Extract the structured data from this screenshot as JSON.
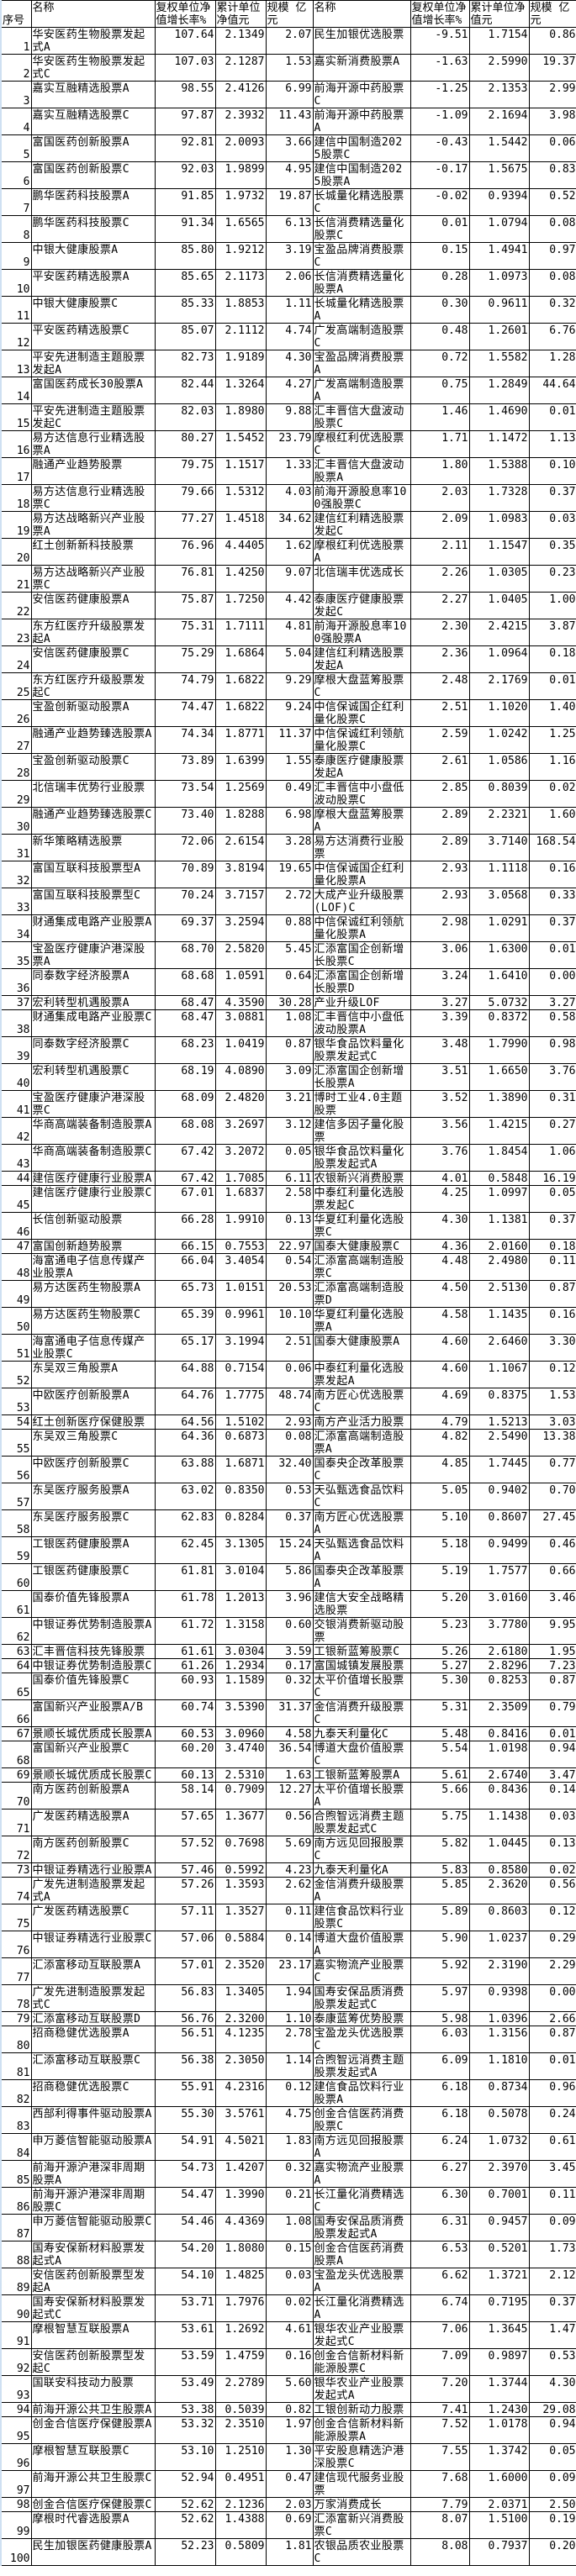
{
  "table": {
    "headers": [
      "序号",
      "名称",
      "复权单位净值增长率%",
      "累计单位净值元",
      "规模 亿元",
      "名称",
      "复权单位净值增长率%",
      "累计单位净值元",
      "规模 亿元"
    ],
    "rows": [
      [
        "1",
        "华安医药生物股票发起式A",
        "107.64",
        "2.1349",
        "2.07",
        "民生加银优选股票",
        "-9.51",
        "1.7154",
        "0.86"
      ],
      [
        "2",
        "华安医药生物股票发起式C",
        "107.03",
        "2.1287",
        "1.53",
        "嘉实新消费股票A",
        "-1.63",
        "2.5990",
        "19.37"
      ],
      [
        "3",
        "嘉实互融精选股票A",
        "98.55",
        "2.4126",
        "6.99",
        "前海开源中药股票C",
        "-1.25",
        "2.1353",
        "2.99"
      ],
      [
        "4",
        "嘉实互融精选股票C",
        "97.87",
        "2.3932",
        "11.43",
        "前海开源中药股票A",
        "-1.09",
        "2.1694",
        "3.98"
      ],
      [
        "5",
        "富国医药创新股票A",
        "92.81",
        "2.0093",
        "3.66",
        "建信中国制造2025股票C",
        "-0.43",
        "1.5442",
        "0.06"
      ],
      [
        "6",
        "富国医药创新股票C",
        "92.03",
        "1.9899",
        "4.95",
        "建信中国制造2025股票A",
        "-0.17",
        "1.5675",
        "0.83"
      ],
      [
        "7",
        "鹏华医药科技股票A",
        "91.85",
        "1.9732",
        "19.87",
        "长城量化精选股票C",
        "-0.02",
        "0.9394",
        "0.52"
      ],
      [
        "8",
        "鹏华医药科技股票C",
        "91.34",
        "1.6565",
        "6.13",
        "长信消费精选量化股票C",
        "0.01",
        "1.0794",
        "0.08"
      ],
      [
        "9",
        "中银大健康股票A",
        "85.80",
        "1.9212",
        "3.19",
        "宝盈品牌消费股票C",
        "0.15",
        "1.4941",
        "0.97"
      ],
      [
        "10",
        "平安医药精选股票A",
        "85.65",
        "2.1173",
        "2.06",
        "长信消费精选量化股票A",
        "0.28",
        "1.0973",
        "0.08"
      ],
      [
        "11",
        "中银大健康股票C",
        "85.33",
        "1.8853",
        "1.11",
        "长城量化精选股票A",
        "0.30",
        "0.9611",
        "0.32"
      ],
      [
        "12",
        "平安医药精选股票C",
        "85.07",
        "2.1112",
        "4.74",
        "广发高端制造股票C",
        "0.48",
        "1.2601",
        "6.76"
      ],
      [
        "13",
        "平安先进制造主题股票发起A",
        "82.73",
        "1.9189",
        "4.30",
        "宝盈品牌消费股票A",
        "0.72",
        "1.5582",
        "1.28"
      ],
      [
        "14",
        "富国医药成长30股票A",
        "82.44",
        "1.3264",
        "4.27",
        "广发高端制造股票A",
        "0.75",
        "1.2849",
        "44.64"
      ],
      [
        "15",
        "平安先进制造主题股票发起C",
        "82.03",
        "1.8980",
        "9.88",
        "汇丰晋信大盘波动股票C",
        "1.46",
        "1.4690",
        "0.01"
      ],
      [
        "16",
        "易方达信息行业精选股票A",
        "80.27",
        "1.5452",
        "23.79",
        "摩根红利优选股票C",
        "1.71",
        "1.1472",
        "1.13"
      ],
      [
        "17",
        "融通产业趋势股票",
        "79.75",
        "1.1517",
        "1.33",
        "汇丰晋信大盘波动股票A",
        "1.80",
        "1.5388",
        "0.10"
      ],
      [
        "18",
        "易方达信息行业精选股票C",
        "79.66",
        "1.5312",
        "4.03",
        "前海开源股息率100强股票C",
        "2.03",
        "1.7328",
        "0.37"
      ],
      [
        "19",
        "易方达战略新兴产业股票A",
        "77.27",
        "1.4518",
        "34.62",
        "建信红利精选股票发起C",
        "2.09",
        "1.0983",
        "0.03"
      ],
      [
        "20",
        "红土创新新科技股票",
        "76.96",
        "4.4405",
        "1.62",
        "摩根红利优选股票A",
        "2.11",
        "1.1547",
        "0.35"
      ],
      [
        "21",
        "易方达战略新兴产业股票C",
        "76.81",
        "1.4250",
        "9.07",
        "北信瑞丰优选成长",
        "2.26",
        "1.0305",
        "0.23"
      ],
      [
        "22",
        "安信医药健康股票A",
        "75.87",
        "1.7250",
        "4.42",
        "泰康医疗健康股票发起C",
        "2.27",
        "1.0405",
        "1.00"
      ],
      [
        "23",
        "东方红医疗升级股票发起A",
        "75.31",
        "1.7111",
        "4.81",
        "前海开源股息率100强股票A",
        "2.30",
        "2.4215",
        "3.87"
      ],
      [
        "24",
        "安信医药健康股票C",
        "75.29",
        "1.6864",
        "5.04",
        "建信红利精选股票发起A",
        "2.36",
        "1.0964",
        "0.18"
      ],
      [
        "25",
        "东方红医疗升级股票发起C",
        "74.79",
        "1.6822",
        "9.29",
        "摩根大盘蓝筹股票C",
        "2.48",
        "2.1769",
        "0.01"
      ],
      [
        "26",
        "宝盈创新驱动股票A",
        "74.47",
        "1.6822",
        "9.24",
        "中信保诚国企红利量化股票C",
        "2.51",
        "1.1020",
        "1.40"
      ],
      [
        "27",
        "融通产业趋势臻选股票A",
        "74.34",
        "1.8771",
        "11.37",
        "中信保诚红利领航量化股票C",
        "2.59",
        "1.0242",
        "1.25"
      ],
      [
        "28",
        "宝盈创新驱动股票C",
        "73.89",
        "1.6399",
        "1.55",
        "泰康医疗健康股票发起A",
        "2.61",
        "1.0586",
        "1.16"
      ],
      [
        "29",
        "北信瑞丰优势行业股票",
        "73.54",
        "1.2569",
        "0.49",
        "汇丰晋信中小盘低波动股票C",
        "2.85",
        "0.8039",
        "0.02"
      ],
      [
        "30",
        "融通产业趋势臻选股票C",
        "73.40",
        "1.8288",
        "6.98",
        "摩根大盘蓝筹股票A",
        "2.89",
        "2.2321",
        "1.60"
      ],
      [
        "31",
        "新华策略精选股票",
        "72.06",
        "2.6154",
        "3.28",
        "易方达消费行业股票",
        "2.89",
        "3.7140",
        "168.54"
      ],
      [
        "32",
        "富国互联科技股票型A",
        "70.89",
        "3.8194",
        "19.65",
        "中信保诚国企红利量化股票A",
        "2.93",
        "1.1118",
        "0.16"
      ],
      [
        "33",
        "富国互联科技股票型C",
        "70.24",
        "3.7157",
        "2.72",
        "大成产业升级股票(LOF)C",
        "2.93",
        "3.0568",
        "0.33"
      ],
      [
        "34",
        "财通集成电路产业股票A",
        "69.37",
        "3.2594",
        "0.88",
        "中信保诚红利领航量化股票A",
        "2.98",
        "1.0291",
        "0.37"
      ],
      [
        "35",
        "宝盈医疗健康沪港深股票A",
        "68.70",
        "2.5820",
        "5.45",
        "汇添富国企创新增长股票C",
        "3.06",
        "1.6300",
        "0.01"
      ],
      [
        "36",
        "同泰数字经济股票A",
        "68.68",
        "1.0591",
        "0.64",
        "汇添富国企创新增长股票D",
        "3.24",
        "1.6410",
        "0.00"
      ],
      [
        "37",
        "宏利转型机遇股票A",
        "68.47",
        "4.3590",
        "30.28",
        "产业升级LOF",
        "3.27",
        "5.0732",
        "3.27"
      ],
      [
        "38",
        "财通集成电路产业股票C",
        "68.47",
        "3.0881",
        "1.08",
        "汇丰晋信中小盘低波动股票A",
        "3.39",
        "0.8372",
        "0.58"
      ],
      [
        "39",
        "同泰数字经济股票C",
        "68.23",
        "1.0419",
        "0.87",
        "银华食品饮料量化股票发起式C",
        "3.48",
        "1.7990",
        "0.98"
      ],
      [
        "40",
        "宏利转型机遇股票C",
        "68.19",
        "4.0890",
        "3.09",
        "汇添富国企创新增长股票A",
        "3.51",
        "1.6650",
        "3.76"
      ],
      [
        "41",
        "宝盈医疗健康沪港深股票C",
        "68.09",
        "2.4820",
        "3.21",
        "博时工业4.0主题股票",
        "3.52",
        "1.3890",
        "0.31"
      ],
      [
        "42",
        "华商高端装备制造股票A",
        "68.08",
        "3.2697",
        "3.12",
        "建信多因子量化股票",
        "3.56",
        "1.4215",
        "0.27"
      ],
      [
        "43",
        "华商高端装备制造股票C",
        "67.42",
        "3.2072",
        "0.05",
        "银华食品饮料量化股票发起式A",
        "3.76",
        "1.8454",
        "1.06"
      ],
      [
        "44",
        "建信医疗健康行业股票A",
        "67.42",
        "1.7085",
        "6.11",
        "农银新兴消费股票",
        "4.01",
        "0.5848",
        "16.19"
      ],
      [
        "45",
        "建信医疗健康行业股票C",
        "67.01",
        "1.6837",
        "2.58",
        "中泰红利量化选股票发起C",
        "4.25",
        "1.0997",
        "0.05"
      ],
      [
        "46",
        "长信创新驱动股票",
        "66.28",
        "1.9910",
        "0.13",
        "华夏红利量化选股票C",
        "4.30",
        "1.1381",
        "0.37"
      ],
      [
        "47",
        "富国创新趋势股票",
        "66.15",
        "0.7553",
        "22.97",
        "国泰大健康股票C",
        "4.36",
        "2.0160",
        "0.18"
      ],
      [
        "48",
        "海富通电子信息传媒产业股票A",
        "66.04",
        "3.4054",
        "0.54",
        "汇添富高端制造股票C",
        "4.48",
        "2.4980",
        "0.11"
      ],
      [
        "49",
        "易方达医药生物股票A",
        "65.73",
        "1.0151",
        "20.53",
        "汇添富高端制造股票D",
        "4.50",
        "2.5130",
        "0.87"
      ],
      [
        "50",
        "易方达医药生物股票C",
        "65.39",
        "0.9961",
        "10.10",
        "华夏红利量化选股票A",
        "4.58",
        "1.1435",
        "0.16"
      ],
      [
        "51",
        "海富通电子信息传媒产业股票C",
        "65.17",
        "3.1994",
        "2.51",
        "国泰大健康股票A",
        "4.60",
        "2.6460",
        "3.30"
      ],
      [
        "52",
        "东吴双三角股票A",
        "64.88",
        "0.7154",
        "0.06",
        "中泰红利量化选股票发起A",
        "4.60",
        "1.1067",
        "0.12"
      ],
      [
        "53",
        "中欧医疗创新股票A",
        "64.76",
        "1.7775",
        "48.74",
        "南方匠心优选股票C",
        "4.69",
        "0.8375",
        "1.53"
      ],
      [
        "54",
        "红土创新医疗保健股票",
        "64.56",
        "1.5102",
        "2.93",
        "南方产业活力股票",
        "4.79",
        "1.5213",
        "3.03"
      ],
      [
        "55",
        "东吴双三角股票C",
        "64.36",
        "0.6873",
        "0.08",
        "汇添富高端制造股票A",
        "4.82",
        "2.5490",
        "13.38"
      ],
      [
        "56",
        "中欧医疗创新股票C",
        "63.88",
        "1.6871",
        "32.40",
        "国泰央企改革股票C",
        "4.85",
        "1.7445",
        "0.77"
      ],
      [
        "57",
        "东吴医疗服务股票A",
        "63.02",
        "0.8350",
        "0.53",
        "天弘甄选食品饮料C",
        "5.05",
        "0.9402",
        "0.70"
      ],
      [
        "58",
        "东吴医疗服务股票C",
        "62.83",
        "0.8284",
        "0.37",
        "南方匠心优选股票A",
        "5.10",
        "0.8607",
        "27.45"
      ],
      [
        "59",
        "工银医药健康股票A",
        "62.45",
        "3.1305",
        "15.24",
        "天弘甄选食品饮料A",
        "5.18",
        "0.9499",
        "0.46"
      ],
      [
        "60",
        "工银医药健康股票C",
        "61.81",
        "3.0104",
        "5.86",
        "国泰央企改革股票A",
        "5.19",
        "1.7577",
        "0.66"
      ],
      [
        "61",
        "国泰价值先锋股票A",
        "61.78",
        "1.2013",
        "3.96",
        "建信大安全战略精选股票",
        "5.20",
        "3.0160",
        "3.46"
      ],
      [
        "62",
        "中银证券优势制造股票A",
        "61.72",
        "1.3158",
        "0.60",
        "交银消费新驱动股票",
        "5.23",
        "3.7780",
        "9.95"
      ],
      [
        "63",
        "汇丰晋信科技先锋股票",
        "61.61",
        "3.0304",
        "3.59",
        "工银新蓝筹股票C",
        "5.26",
        "2.6180",
        "1.95"
      ],
      [
        "64",
        "中银证券优势制造股票C",
        "61.26",
        "1.2934",
        "0.17",
        "富国城镇发展股票",
        "5.27",
        "2.8296",
        "7.23"
      ],
      [
        "65",
        "国泰价值先锋股票C",
        "60.93",
        "1.1589",
        "0.32",
        "太平价值增长股票C",
        "5.30",
        "0.8253",
        "0.87"
      ],
      [
        "66",
        "富国新兴产业股票A/B",
        "60.74",
        "3.5390",
        "31.37",
        "金信消费升级股票C",
        "5.31",
        "2.3509",
        "0.79"
      ],
      [
        "67",
        "景顺长城优质成长股票A",
        "60.53",
        "3.0960",
        "4.58",
        "九泰天利量化C",
        "5.48",
        "0.8416",
        "0.01"
      ],
      [
        "68",
        "富国新兴产业股票C",
        "60.20",
        "3.4740",
        "36.54",
        "博道大盘价值股票C",
        "5.54",
        "1.0198",
        "0.94"
      ],
      [
        "69",
        "景顺长城优质成长股票C",
        "60.13",
        "2.5310",
        "1.63",
        "工银新蓝筹股票A",
        "5.61",
        "2.6740",
        "3.47"
      ],
      [
        "70",
        "南方医药创新股票A",
        "58.14",
        "0.7909",
        "12.27",
        "太平价值增长股票A",
        "5.66",
        "0.8436",
        "0.14"
      ],
      [
        "71",
        "广发医药精选股票A",
        "57.65",
        "1.3677",
        "0.56",
        "合煦智远消费主题股票发起式C",
        "5.75",
        "1.1438",
        "0.03"
      ],
      [
        "72",
        "南方医药创新股票C",
        "57.52",
        "0.7698",
        "5.69",
        "南方远见回报股票C",
        "5.82",
        "1.0445",
        "0.13"
      ],
      [
        "73",
        "中银证券精选行业股票A",
        "57.46",
        "0.5992",
        "4.23",
        "九泰天利量化A",
        "5.83",
        "0.8580",
        "0.02"
      ],
      [
        "74",
        "广发先进制造股票发起式A",
        "57.26",
        "1.3593",
        "2.62",
        "金信消费升级股票A",
        "5.85",
        "2.3620",
        "0.56"
      ],
      [
        "75",
        "广发医药精选股票C",
        "57.11",
        "1.3527",
        "0.11",
        "建信食品饮料行业股票C",
        "5.89",
        "0.8603",
        "0.12"
      ],
      [
        "76",
        "中银证券精选行业股票C",
        "57.06",
        "0.5884",
        "0.14",
        "博道大盘价值股票A",
        "5.90",
        "1.0237",
        "0.29"
      ],
      [
        "77",
        "汇添富移动互联股票A",
        "57.01",
        "2.3520",
        "23.17",
        "嘉实物流产业股票C",
        "5.92",
        "2.3190",
        "2.29"
      ],
      [
        "78",
        "广发先进制造股票发起式C",
        "56.83",
        "1.3405",
        "1.94",
        "国寿安保品质消费股票发起式C",
        "5.97",
        "0.9398",
        "0.00"
      ],
      [
        "79",
        "汇添富移动互联股票D",
        "56.76",
        "2.3200",
        "1.10",
        "泰康蓝筹优势股票",
        "5.98",
        "1.0396",
        "2.66"
      ],
      [
        "80",
        "招商稳健优选股票A",
        "56.51",
        "4.1235",
        "2.78",
        "宝盈龙头优选股票C",
        "6.03",
        "1.3156",
        "0.87"
      ],
      [
        "81",
        "汇添富移动互联股票C",
        "56.38",
        "2.3050",
        "1.14",
        "合煦智远消费主题股票发起式A",
        "6.09",
        "1.1810",
        "0.01"
      ],
      [
        "82",
        "招商稳健优选股票C",
        "55.91",
        "4.2316",
        "0.12",
        "建信食品饮料行业股票A",
        "6.18",
        "0.8734",
        "0.96"
      ],
      [
        "83",
        "西部利得事件驱动股票A",
        "55.30",
        "3.5761",
        "4.75",
        "创金合信医药消费股票C",
        "6.18",
        "0.5078",
        "0.24"
      ],
      [
        "84",
        "申万菱信智能驱动股票A",
        "54.91",
        "4.5021",
        "1.83",
        "南方远见回报股票A",
        "6.24",
        "1.0732",
        "0.61"
      ],
      [
        "85",
        "前海开源沪港深非周期股票A",
        "54.73",
        "1.4207",
        "0.32",
        "嘉实物流产业股票A",
        "6.27",
        "2.3970",
        "3.45"
      ],
      [
        "86",
        "前海开源沪港深非周期股票C",
        "54.47",
        "1.3990",
        "0.21",
        "长江量化消费精选C",
        "6.30",
        "0.7001",
        "0.11"
      ],
      [
        "87",
        "申万菱信智能驱动股票C",
        "54.46",
        "4.4369",
        "1.08",
        "国寿安保品质消费股票发起式A",
        "6.31",
        "0.9457",
        "0.09"
      ],
      [
        "88",
        "国寿安保新材料股票发起式A",
        "54.20",
        "1.8080",
        "0.15",
        "创金合信医药消费股票A",
        "6.53",
        "0.5201",
        "1.73"
      ],
      [
        "89",
        "安信医药创新股票型发起A",
        "54.10",
        "1.4825",
        "0.03",
        "宝盈龙头优选股票A",
        "6.62",
        "1.3721",
        "2.12"
      ],
      [
        "90",
        "国寿安保新材料股票发起式C",
        "53.71",
        "1.7976",
        "0.02",
        "长江量化消费精选A",
        "6.74",
        "0.7195",
        "0.37"
      ],
      [
        "91",
        "摩根智慧互联股票A",
        "53.61",
        "1.2692",
        "4.61",
        "银华农业产业股票发起式C",
        "7.06",
        "1.3645",
        "1.47"
      ],
      [
        "92",
        "安信医药创新股票型发起C",
        "53.59",
        "1.4759",
        "0.16",
        "创金合信新材料新能源股票C",
        "7.09",
        "0.9897",
        "0.53"
      ],
      [
        "93",
        "国联安科技动力股票",
        "53.49",
        "2.2789",
        "5.60",
        "银华农业产业股票发起式A",
        "7.20",
        "1.3744",
        "4.30"
      ],
      [
        "94",
        "前海开源公共卫生股票A",
        "53.38",
        "0.5039",
        "0.82",
        "工银创新动力股票",
        "7.41",
        "1.2430",
        "29.08"
      ],
      [
        "95",
        "创金合信医疗保健股票A",
        "53.32",
        "2.3510",
        "1.97",
        "创金合信新材料新能源股票A",
        "7.52",
        "1.0178",
        "0.94"
      ],
      [
        "96",
        "摩根智慧互联股票C",
        "53.10",
        "1.2510",
        "1.30",
        "平安股息精选沪港深股票C",
        "7.55",
        "1.3742",
        "0.05"
      ],
      [
        "97",
        "前海开源公共卫生股票C",
        "52.94",
        "0.4951",
        "0.47",
        "建信现代服务业股票",
        "7.68",
        "1.6000",
        "0.09"
      ],
      [
        "98",
        "创金合信医疗保健股票C",
        "52.62",
        "2.1236",
        "2.03",
        "万家消费成长",
        "7.79",
        "2.0371",
        "2.50"
      ],
      [
        "99",
        "摩根时代睿选股票A",
        "52.62",
        "1.4388",
        "0.69",
        "汇添富新兴消费股票C",
        "8.07",
        "1.5100",
        "0.19"
      ],
      [
        "100",
        "民生加银医药健康股票A",
        "52.23",
        "0.5809",
        "1.81",
        "农银品质农业股票C",
        "8.08",
        "0.7937",
        "0.20"
      ]
    ]
  }
}
